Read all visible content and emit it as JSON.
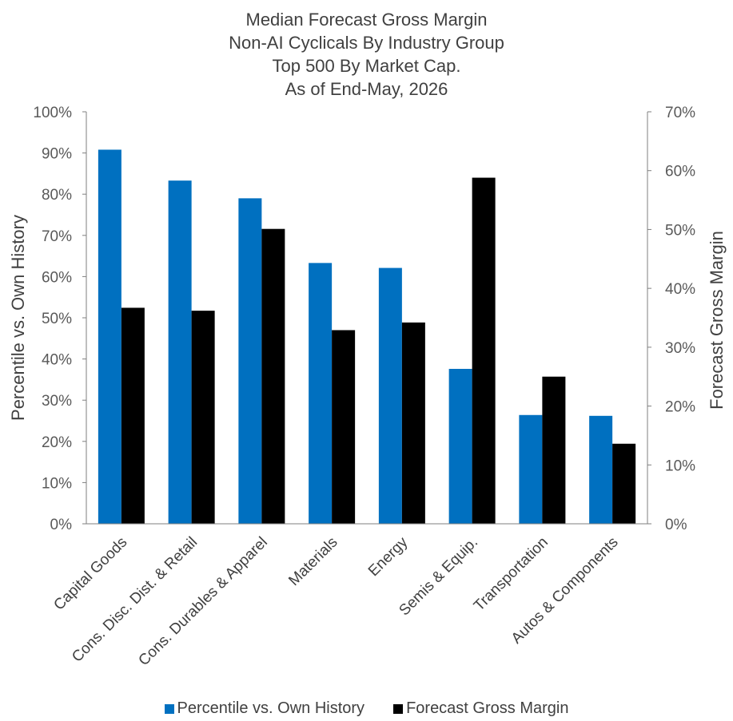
{
  "chart_data": {
    "type": "bar",
    "title": [
      "Median Forecast Gross Margin",
      "Non-AI Cyclicals By Industry Group",
      "Top 500 By Market Cap.",
      "As of End-May, 2026"
    ],
    "categories": [
      "Capital Goods",
      "Cons. Disc. Dist. & Retail",
      "Cons. Durables & Apparel",
      "Materials",
      "Energy",
      "Semis & Equip.",
      "Transportation",
      "Autos & Components"
    ],
    "series": [
      {
        "name": "Percentile vs. Own History",
        "axis": "left",
        "color": "#0070C0",
        "values": [
          90.8,
          83.3,
          79.0,
          63.3,
          62.1,
          37.6,
          26.4,
          26.2
        ]
      },
      {
        "name": "Forecast Gross Margin",
        "axis": "right",
        "color": "#000000",
        "values": [
          36.7,
          36.2,
          50.1,
          32.9,
          34.2,
          58.8,
          25.0,
          13.6
        ]
      }
    ],
    "ylabel": "Percentile vs. Own History",
    "ylabel_right": "Forecast Gross Margin",
    "ylim": [
      0,
      100
    ],
    "ylim_right": [
      0,
      70
    ],
    "yticks": [
      "0%",
      "10%",
      "20%",
      "30%",
      "40%",
      "50%",
      "60%",
      "70%",
      "80%",
      "90%",
      "100%"
    ],
    "yticks_right": [
      "0%",
      "10%",
      "20%",
      "30%",
      "40%",
      "50%",
      "60%",
      "70%"
    ],
    "grid": false,
    "legend_position": "bottom"
  }
}
